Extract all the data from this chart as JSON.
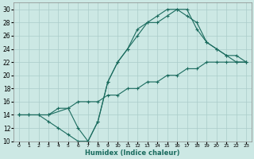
{
  "title": "",
  "xlabel": "Humidex (Indice chaleur)",
  "bg_color": "#cce8e4",
  "grid_color": "#aaccca",
  "line_color": "#1a6b5e",
  "line1_x": [
    0,
    1,
    2,
    3,
    4,
    5,
    6,
    7,
    8,
    9,
    10,
    11,
    12,
    13,
    14,
    15,
    16,
    17,
    18,
    19,
    20,
    21,
    22,
    23
  ],
  "line1_y": [
    14,
    14,
    14,
    13,
    12,
    11,
    10,
    10,
    13,
    19,
    22,
    24,
    27,
    28,
    28,
    29,
    30,
    30,
    27,
    25,
    24,
    23,
    22,
    22
  ],
  "line2_x": [
    0,
    1,
    2,
    3,
    4,
    5,
    6,
    7,
    8,
    9,
    10,
    11,
    12,
    13,
    14,
    15,
    16,
    17,
    18,
    19,
    20,
    21,
    22,
    23
  ],
  "line2_y": [
    14,
    14,
    14,
    14,
    15,
    15,
    16,
    16,
    16,
    17,
    17,
    18,
    18,
    19,
    19,
    20,
    20,
    21,
    21,
    22,
    22,
    22,
    22,
    22
  ],
  "line3_x": [
    0,
    3,
    5,
    6,
    7,
    8,
    9,
    10,
    11,
    12,
    13,
    14,
    15,
    16,
    17,
    18,
    19,
    20,
    21,
    22,
    23
  ],
  "line3_y": [
    14,
    14,
    15,
    12,
    10,
    13,
    19,
    22,
    24,
    26,
    28,
    29,
    30,
    30,
    29,
    28,
    25,
    24,
    23,
    23,
    22
  ],
  "xlim": [
    -0.5,
    23.5
  ],
  "ylim": [
    10,
    31
  ],
  "yticks": [
    10,
    12,
    14,
    16,
    18,
    20,
    22,
    24,
    26,
    28,
    30
  ],
  "xticks": [
    0,
    1,
    2,
    3,
    4,
    5,
    6,
    7,
    8,
    9,
    10,
    11,
    12,
    13,
    14,
    15,
    16,
    17,
    18,
    19,
    20,
    21,
    22,
    23
  ],
  "xtick_labels": [
    "0",
    "1",
    "2",
    "3",
    "4",
    "5",
    "6",
    "7",
    "8",
    "9",
    "10",
    "11",
    "12",
    "13",
    "14",
    "15",
    "16",
    "17",
    "18",
    "19",
    "20",
    "21",
    "22",
    "23"
  ]
}
